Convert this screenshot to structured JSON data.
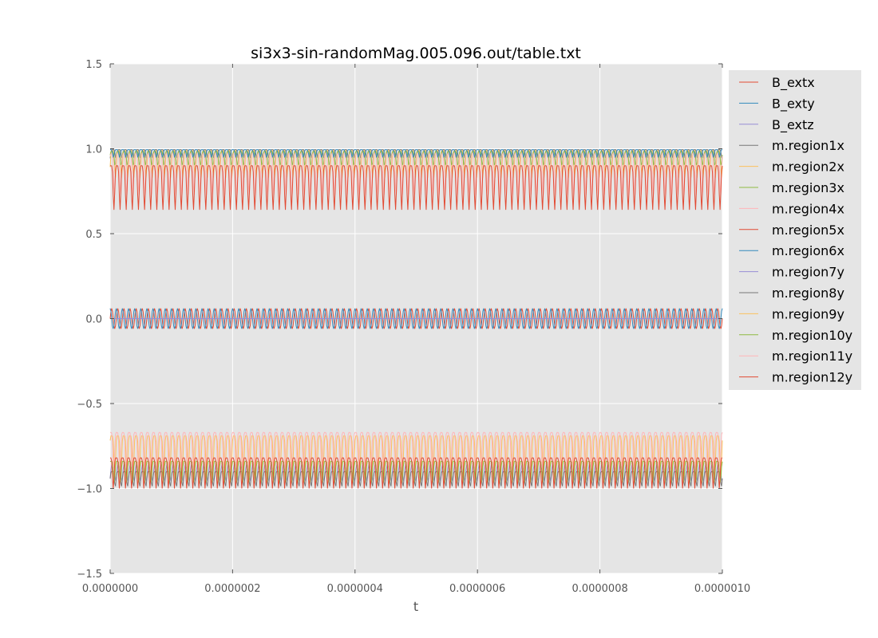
{
  "chart_data": {
    "type": "line",
    "title": "si3x3-sin-randomMag.005.096.out/table.txt",
    "xlabel": "t",
    "ylabel": "",
    "xlim": [
      0,
      1e-06
    ],
    "ylim": [
      -1.5,
      1.5
    ],
    "x_ticks": [
      "0.0000000",
      "0.0000002",
      "0.0000004",
      "0.0000006",
      "0.0000008",
      "0.0000010"
    ],
    "y_ticks": [
      "−1.5",
      "−1.0",
      "−0.5",
      "0.0",
      "0.5",
      "1.0",
      "1.5"
    ],
    "x_tick_values": [
      0,
      2e-07,
      4e-07,
      6e-07,
      8e-07,
      1e-06
    ],
    "y_tick_values": [
      -1.5,
      -1.0,
      -0.5,
      0.0,
      0.5,
      1.0,
      1.5
    ],
    "grid": true,
    "background": "#e5e5e5",
    "legend_position": "outside-right",
    "cycles": 100,
    "series": [
      {
        "name": "B_extx",
        "color": "#e24a33",
        "amplitude": 0.06,
        "phase": 0,
        "wave": "sin",
        "center": 0.0
      },
      {
        "name": "B_exty",
        "color": "#348abd",
        "amplitude": 0.06,
        "phase": 1.5708,
        "wave": "sin",
        "center": 0.0
      },
      {
        "name": "B_extz",
        "color": "#988ed5",
        "amplitude": 0.0,
        "phase": 0,
        "wave": "const",
        "center": 0.0
      },
      {
        "name": "m.region1x",
        "color": "#777777",
        "min": 0.94,
        "max": 0.995,
        "phase": 0.3,
        "wave": "spike"
      },
      {
        "name": "m.region2x",
        "color": "#fbc15e",
        "min": 0.83,
        "max": 0.99,
        "phase": 0.8,
        "wave": "spike"
      },
      {
        "name": "m.region3x",
        "color": "#8eba42",
        "min": 0.9,
        "max": 0.985,
        "phase": 1.3,
        "wave": "spike"
      },
      {
        "name": "m.region4x",
        "color": "#ffb5b8",
        "min": 0.72,
        "max": 0.97,
        "phase": 1.8,
        "wave": "spike"
      },
      {
        "name": "m.region5x",
        "color": "#e24a33",
        "min": 0.64,
        "max": 0.9,
        "phase": 2.4,
        "wave": "spike"
      },
      {
        "name": "m.region6x",
        "color": "#348abd",
        "min": 0.95,
        "max": 0.995,
        "phase": 2.9,
        "wave": "spike"
      },
      {
        "name": "m.region7y",
        "color": "#988ed5",
        "min": -0.96,
        "max": -0.86,
        "phase": 0.5,
        "wave": "spike"
      },
      {
        "name": "m.region8y",
        "color": "#777777",
        "min": -0.99,
        "max": -0.9,
        "phase": 1.0,
        "wave": "spike"
      },
      {
        "name": "m.region9y",
        "color": "#fbc15e",
        "min": -0.93,
        "max": -0.69,
        "phase": 1.6,
        "wave": "spike"
      },
      {
        "name": "m.region10y",
        "color": "#8eba42",
        "min": -0.97,
        "max": -0.84,
        "phase": 2.1,
        "wave": "spike"
      },
      {
        "name": "m.region11y",
        "color": "#ffb5b8",
        "min": -0.9,
        "max": -0.67,
        "phase": 2.6,
        "wave": "spike"
      },
      {
        "name": "m.region12y",
        "color": "#e24a33",
        "min": -1.0,
        "max": -0.82,
        "phase": 3.1,
        "wave": "spike"
      }
    ]
  }
}
